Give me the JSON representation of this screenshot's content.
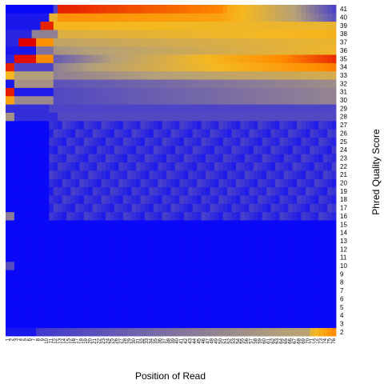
{
  "chart_data": {
    "type": "heatmap",
    "xlabel": "Position of Read",
    "ylabel": "Phred Quality Score",
    "x_ticks": [
      1,
      2,
      3,
      4,
      5,
      6,
      7,
      8,
      9,
      10,
      11,
      12,
      13,
      14,
      15,
      16,
      17,
      18,
      19,
      20,
      21,
      22,
      23,
      24,
      25,
      26,
      27,
      28,
      29,
      30,
      31,
      32,
      33,
      34,
      35,
      36,
      37,
      38,
      39,
      40,
      41,
      42,
      43,
      44,
      45,
      46,
      47,
      48,
      49,
      50,
      51,
      52,
      53,
      54,
      55,
      56,
      57,
      58,
      59,
      60,
      61,
      62,
      63,
      64,
      65,
      66,
      67,
      68,
      69,
      70,
      71,
      72,
      73,
      74,
      75,
      76
    ],
    "y_ticks": [
      2,
      3,
      4,
      5,
      6,
      7,
      8,
      9,
      10,
      11,
      12,
      13,
      14,
      15,
      16,
      17,
      18,
      19,
      20,
      21,
      22,
      23,
      24,
      25,
      26,
      27,
      28,
      29,
      30,
      31,
      32,
      33,
      34,
      35,
      36,
      37,
      38,
      39,
      40,
      41
    ],
    "x_range": [
      1,
      76
    ],
    "y_range": [
      2,
      41
    ],
    "color_scale": [
      "#0000ff",
      "#b4a079",
      "#f5b820",
      "#ff8c00",
      "#e00000"
    ],
    "grid": false,
    "legend": "none"
  }
}
